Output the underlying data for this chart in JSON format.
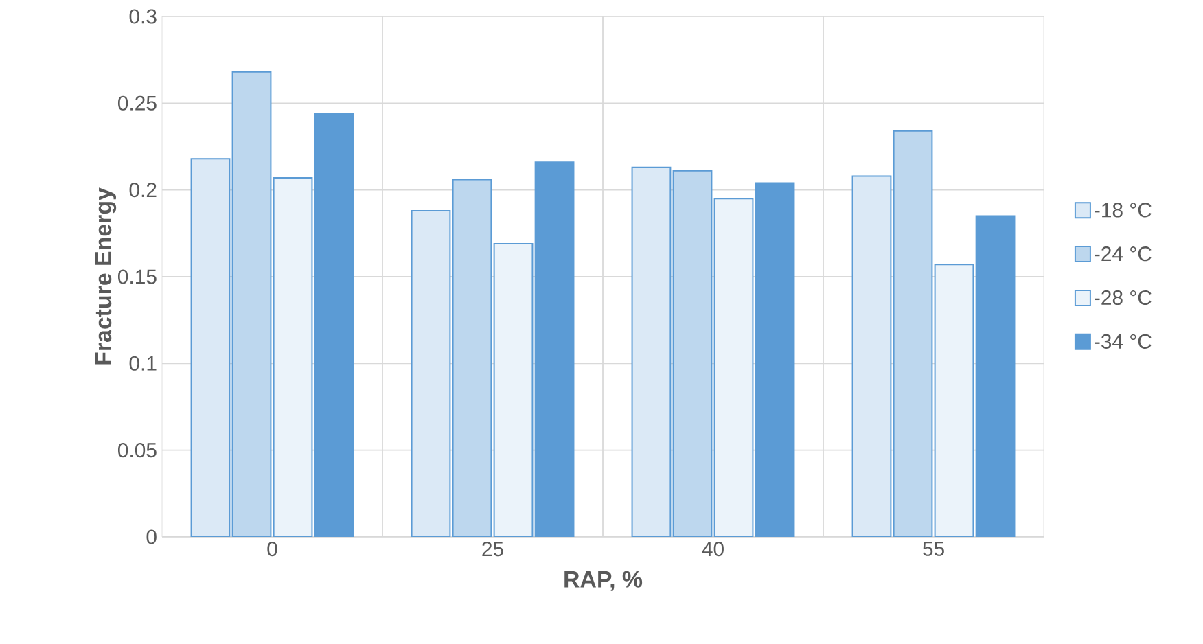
{
  "chart_data": {
    "type": "bar",
    "xlabel": "RAP, %",
    "ylabel": "Fracture Energy",
    "categories": [
      "0",
      "25",
      "40",
      "55"
    ],
    "series": [
      {
        "name": "-18 °C",
        "color": "#dbe9f6",
        "values": [
          0.218,
          0.188,
          0.213,
          0.208
        ]
      },
      {
        "name": "-24 °C",
        "color": "#bdd7ee",
        "values": [
          0.268,
          0.206,
          0.211,
          0.234
        ]
      },
      {
        "name": "-28 °C",
        "color": "#ebf3fa",
        "values": [
          0.207,
          0.169,
          0.195,
          0.157
        ]
      },
      {
        "name": "-34 °C",
        "color": "#5b9bd5",
        "values": [
          0.244,
          0.216,
          0.204,
          0.185
        ]
      }
    ],
    "ylim": [
      0,
      0.3
    ],
    "yticks": [
      0,
      0.05,
      0.1,
      0.15,
      0.2,
      0.25,
      0.3
    ],
    "grid": true,
    "legend": "right"
  }
}
